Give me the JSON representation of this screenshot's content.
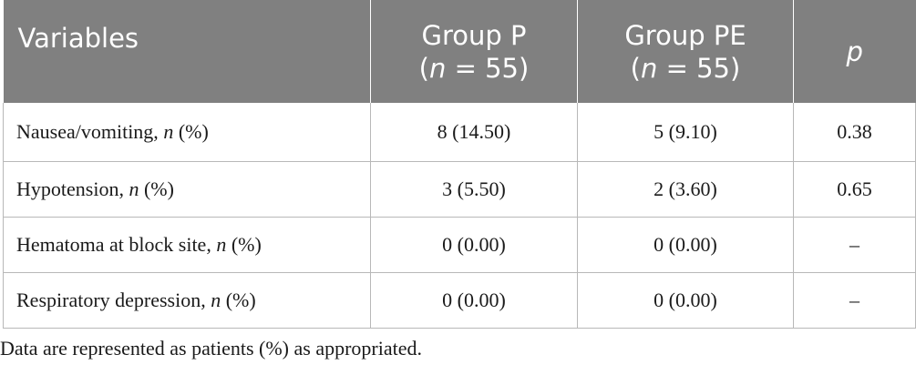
{
  "table": {
    "header": {
      "variables": "Variables",
      "group_p_name": "Group P",
      "group_p_n_open": "(",
      "group_p_n_var": "n",
      "group_p_n_rest": " = 55)",
      "group_pe_name": "Group PE",
      "group_pe_n_open": "(",
      "group_pe_n_var": "n",
      "group_pe_n_rest": " = 55)",
      "p": "p"
    },
    "rows": [
      {
        "label": "Nausea/vomiting, ",
        "label_n": "n",
        "label_unit": " (%)",
        "group_p": "8 (14.50)",
        "group_pe": "5 (9.10)",
        "p": "0.38"
      },
      {
        "label": "Hypotension, ",
        "label_n": "n",
        "label_unit": " (%)",
        "group_p": "3 (5.50)",
        "group_pe": "2 (3.60)",
        "p": "0.65"
      },
      {
        "label": "Hematoma at block site, ",
        "label_n": "n",
        "label_unit": " (%)",
        "group_p": "0 (0.00)",
        "group_pe": "0 (0.00)",
        "p": "–"
      },
      {
        "label": "Respiratory depression, ",
        "label_n": "n",
        "label_unit": " (%)",
        "group_p": "0 (0.00)",
        "group_pe": "0 (0.00)",
        "p": "–"
      }
    ]
  },
  "footnote": "Data are represented as patients (%) as appropriated.",
  "colors": {
    "header_bg": "#808080",
    "header_text": "#ffffff",
    "border": "#b8b8b8",
    "body_text": "#1a1a1a"
  }
}
